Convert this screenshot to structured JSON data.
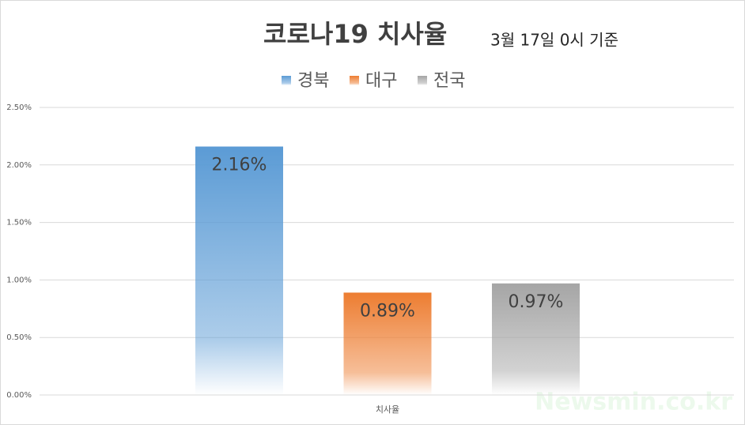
{
  "chart_data": {
    "type": "bar",
    "title": "코로나19 치사율",
    "subtitle": "3월 17일 0시 기준",
    "categories": [
      "치사율"
    ],
    "series": [
      {
        "name": "경북",
        "color": "#5b9bd5",
        "values": [
          2.16
        ],
        "value_labels": [
          "2.16%"
        ]
      },
      {
        "name": "대구",
        "color": "#ed7d31",
        "values": [
          0.89
        ],
        "value_labels": [
          "0.89%"
        ]
      },
      {
        "name": "전국",
        "color": "#a5a5a5",
        "values": [
          0.97
        ],
        "value_labels": [
          "0.97%"
        ]
      }
    ],
    "ylim": [
      0,
      2.5
    ],
    "yticks": [
      {
        "value": 0,
        "label": "0.00%"
      },
      {
        "value": 0.5,
        "label": "0.50%"
      },
      {
        "value": 1,
        "label": "1.00%"
      },
      {
        "value": 1.5,
        "label": "1.50%"
      },
      {
        "value": 2,
        "label": "2.00%"
      },
      {
        "value": 2.5,
        "label": "2.50%"
      }
    ],
    "grid": true,
    "legend": "top",
    "watermark": "Newsmin.co.kr"
  }
}
